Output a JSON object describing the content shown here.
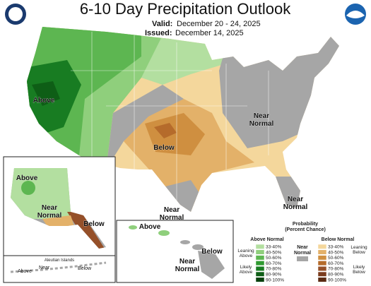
{
  "header": {
    "title": "6-10 Day Precipitation Outlook",
    "valid_label": "Valid:",
    "valid": "December 20 - 24, 2025",
    "issued_label": "Issued:",
    "issued": "December 14, 2025"
  },
  "conus_labels": {
    "above": "Above",
    "below": "Below",
    "near_east": [
      "Near",
      "Normal"
    ],
    "near_texas": [
      "Near",
      "Normal"
    ],
    "near_florida": [
      "Near",
      "Normal"
    ]
  },
  "alaska_labels": {
    "above": "Above",
    "near": [
      "Near",
      "Normal"
    ],
    "below": "Below"
  },
  "aleutian_labels": {
    "title": "Aleutian Islands",
    "above": "Above",
    "near": "Near",
    "below": "Below"
  },
  "hawaii_labels": {
    "above": "Above",
    "near": [
      "Near",
      "Normal"
    ],
    "below": "Below"
  },
  "legend": {
    "title": [
      "Probability",
      "(Percent Chance)"
    ],
    "above": {
      "name": "Above Normal",
      "leaning": [
        "Leaning",
        "Above"
      ],
      "likely": [
        "Likely",
        "Above"
      ],
      "classes": [
        {
          "label": "33-40%",
          "color": "#b3dfa0"
        },
        {
          "label": "40-50%",
          "color": "#8fcf7c"
        },
        {
          "label": "50-60%",
          "color": "#5db651"
        },
        {
          "label": "60-70%",
          "color": "#2f9a31"
        },
        {
          "label": "70-80%",
          "color": "#187c22"
        },
        {
          "label": "80-90%",
          "color": "#0e5e16"
        },
        {
          "label": "90-100%",
          "color": "#07400d"
        }
      ]
    },
    "near": {
      "name": [
        "Near",
        "Normal"
      ],
      "color": "#a6a6a6"
    },
    "below": {
      "name": "Below Normal",
      "leaning": [
        "Leaning",
        "Below"
      ],
      "likely": [
        "Likely",
        "Below"
      ],
      "classes": [
        {
          "label": "33-40%",
          "color": "#f4d79c"
        },
        {
          "label": "40-50%",
          "color": "#e3b169"
        },
        {
          "label": "50-60%",
          "color": "#cf8f40"
        },
        {
          "label": "60-70%",
          "color": "#b56b2b"
        },
        {
          "label": "70-80%",
          "color": "#955029"
        },
        {
          "label": "80-90%",
          "color": "#7a3b1d"
        },
        {
          "label": "90-100%",
          "color": "#5a2a12"
        }
      ]
    }
  }
}
